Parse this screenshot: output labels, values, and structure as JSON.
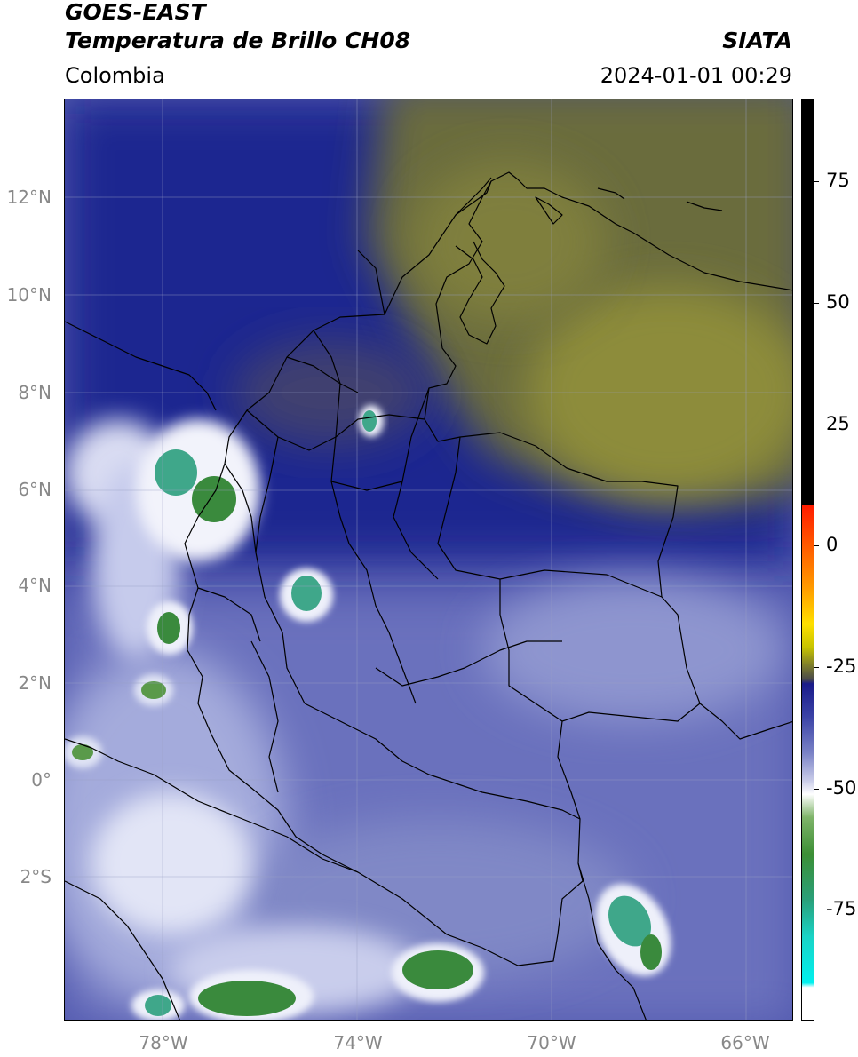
{
  "header": {
    "title_line1": "GOES-EAST",
    "title_line2": "Temperatura de Brillo CH08",
    "region": "Colombia",
    "organization": "SIATA",
    "datetime": "2024-01-01 00:29"
  },
  "map": {
    "lat_labels": [
      "12°N",
      "10°N",
      "8°N",
      "6°N",
      "4°N",
      "2°N",
      "0°",
      "2°S"
    ],
    "lon_labels": [
      "78°W",
      "74°W",
      "70°W",
      "66°W"
    ],
    "colors": {
      "cold_deep_blue": "#1a1f8c",
      "mid_blue": "#5a62b4",
      "light_blue": "#9ba2d6",
      "cloud_white": "#eef0fa",
      "green_core": "#3f8f3a",
      "teal_core": "#3fb08e",
      "dry_olive": "#8a8a3a",
      "dark_olive": "#56573e"
    }
  },
  "colorbar": {
    "labels": [
      "75",
      "50",
      "25",
      "0",
      "-25",
      "-50",
      "-75"
    ],
    "values": [
      75,
      50,
      25,
      0,
      -25,
      -50,
      -75
    ],
    "range": [
      -95,
      95
    ]
  }
}
